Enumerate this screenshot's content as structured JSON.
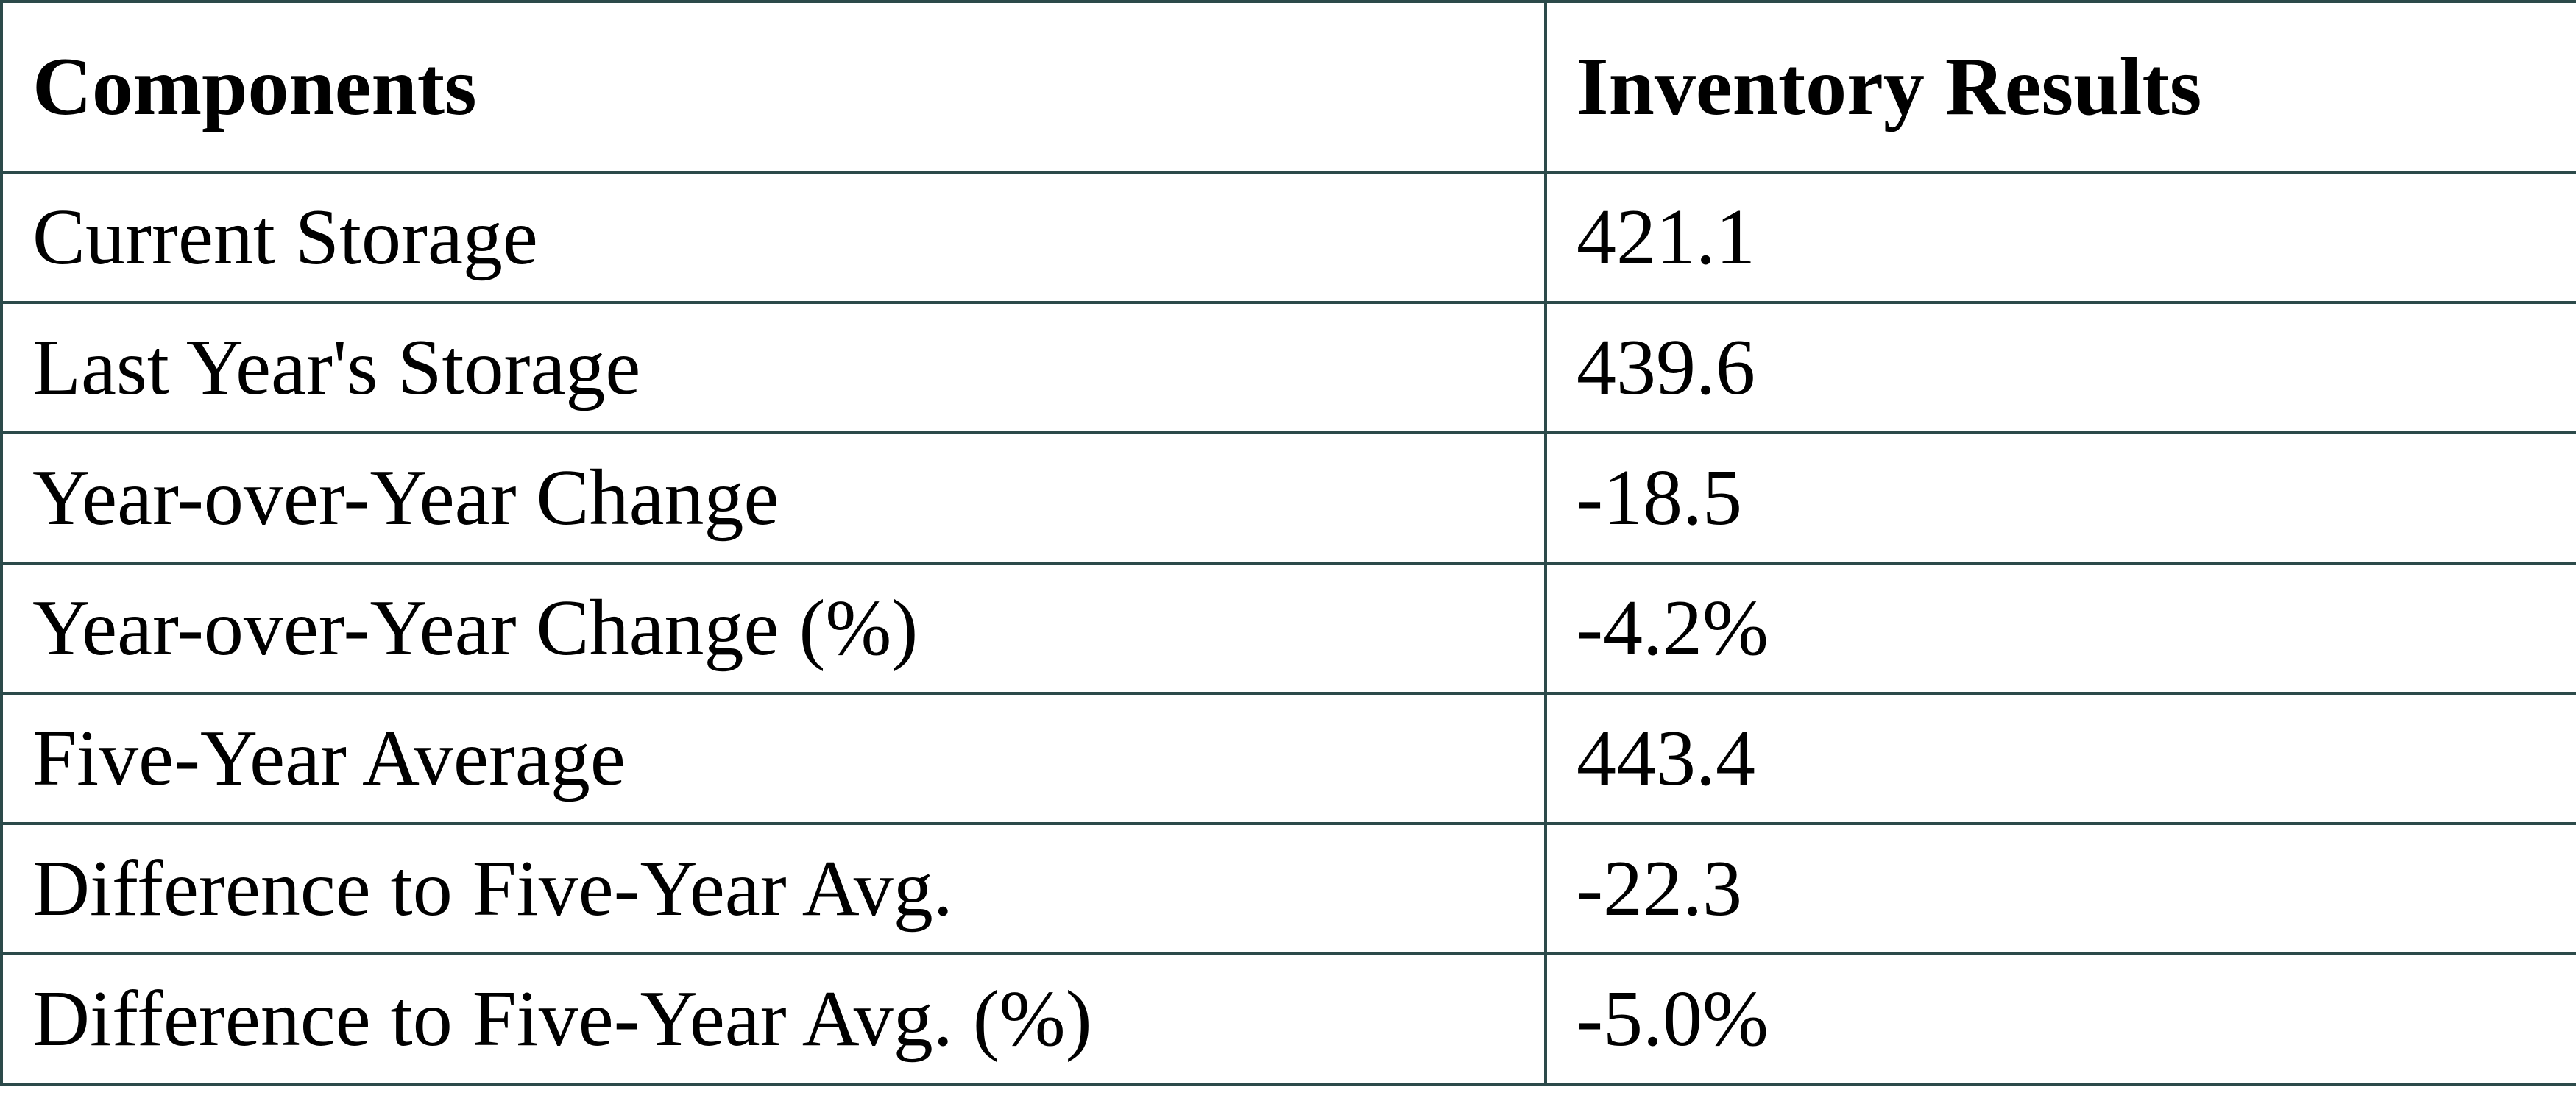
{
  "table": {
    "header": [
      "Components",
      "Inventory Results"
    ],
    "rows": [
      [
        "Current Storage",
        "421.1"
      ],
      [
        "Last Year's Storage",
        "439.6"
      ],
      [
        "Year-over-Year Change",
        "-18.5"
      ],
      [
        "Year-over-Year Change (%)",
        "-4.2%"
      ],
      [
        "Five-Year Average",
        "443.4"
      ],
      [
        "Difference to Five-Year Avg.",
        "-22.3"
      ],
      [
        "Difference to Five-Year Avg. (%)",
        "-5.0%"
      ]
    ]
  }
}
